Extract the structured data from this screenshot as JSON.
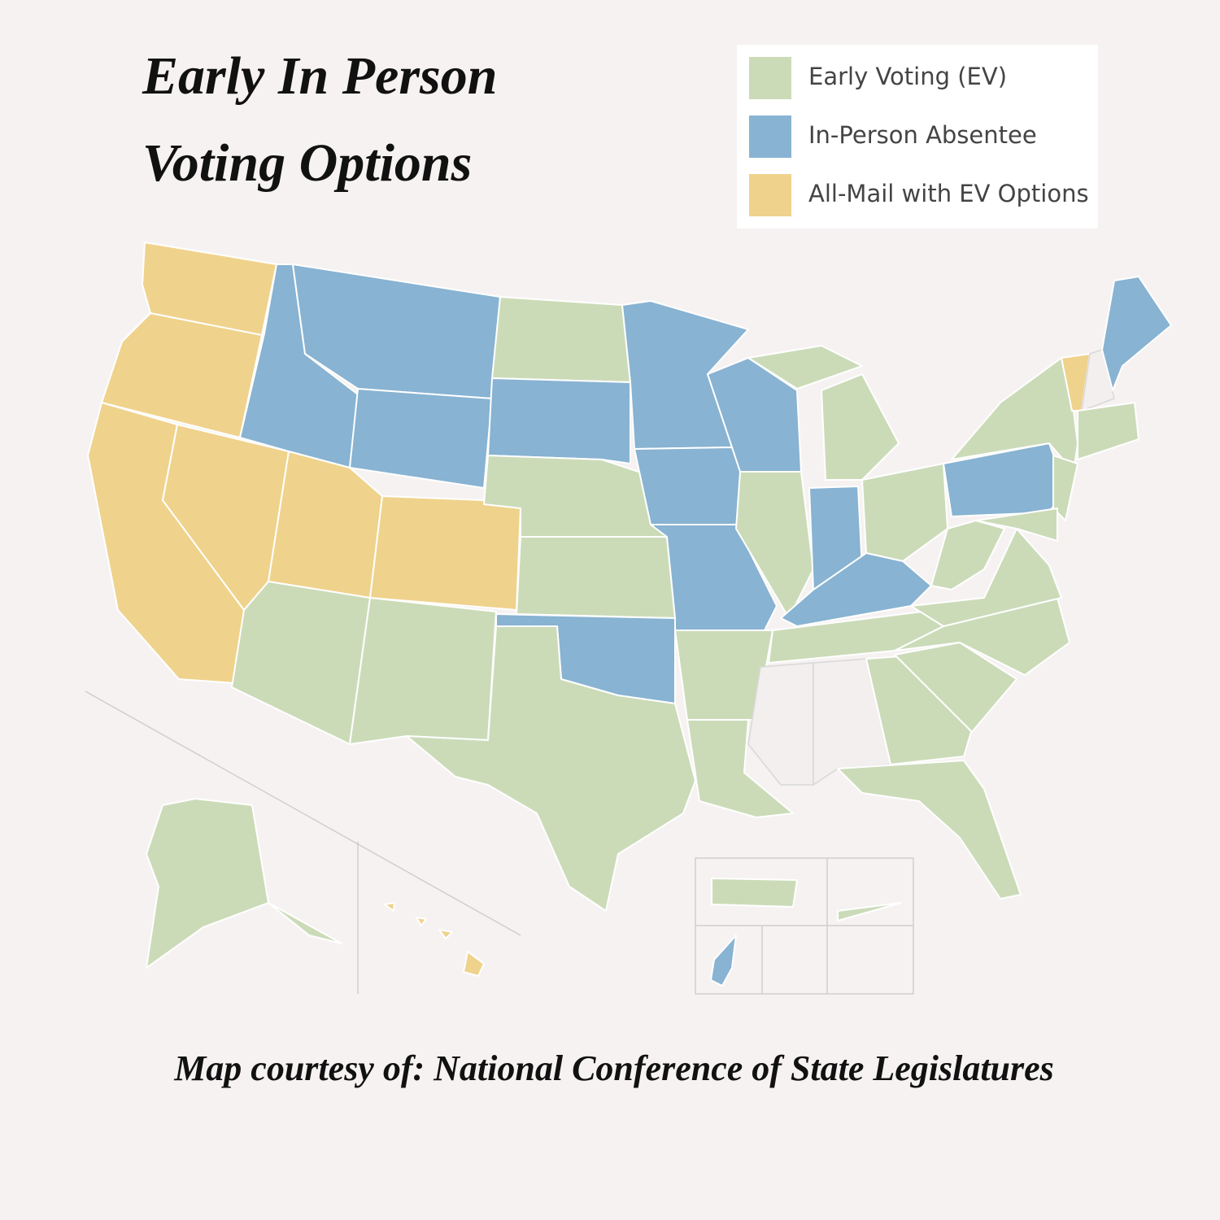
{
  "title": {
    "line1": "Early In Person",
    "line2": "Voting Options"
  },
  "legend": {
    "items": [
      {
        "label": "Early Voting (EV)",
        "color": "#cbdbb8"
      },
      {
        "label": "In-Person Absentee",
        "color": "#88b3d2"
      },
      {
        "label": "All-Mail with EV Options",
        "color": "#efd28c"
      }
    ]
  },
  "caption": "Map courtesy of: National Conference of State Legislatures"
}
